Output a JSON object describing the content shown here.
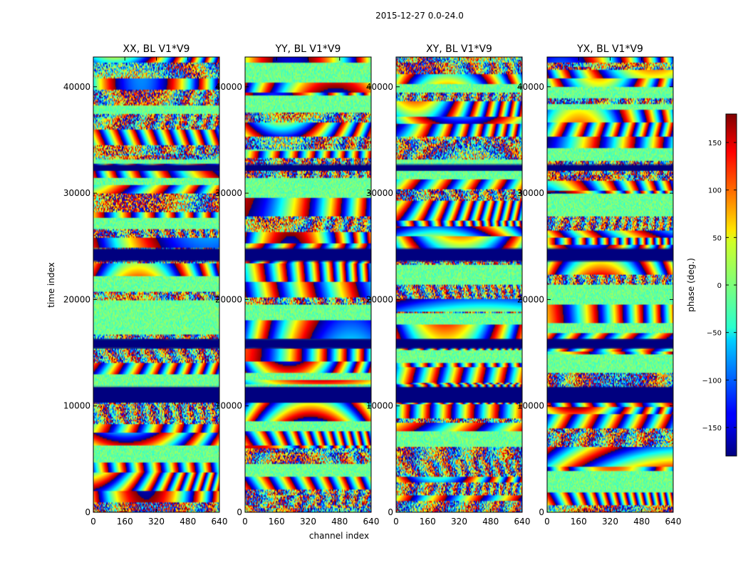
{
  "chart_data": {
    "type": "heatmap",
    "suptitle": "2015-12-27 0.0-24.0",
    "xlabel": "channel index",
    "ylabel": "time index",
    "xlim": [
      0,
      640
    ],
    "ylim": [
      0,
      42800
    ],
    "xticks": [
      0,
      160,
      320,
      480,
      640
    ],
    "yticks": [
      0,
      10000,
      20000,
      30000,
      40000
    ],
    "xtick_labels": [
      "0",
      "160",
      "320",
      "480",
      "640"
    ],
    "ytick_labels": [
      "0",
      "10000",
      "20000",
      "30000",
      "40000"
    ],
    "panels": [
      {
        "title": "XX, BL V1*V9",
        "seed": 11
      },
      {
        "title": "YY, BL V1*V9",
        "seed": 23
      },
      {
        "title": "XY, BL V1*V9",
        "seed": 37
      },
      {
        "title": "YX, BL V1*V9",
        "seed": 53
      }
    ],
    "flagged_time_ranges": [
      [
        32100,
        32700
      ],
      [
        23600,
        24800
      ],
      [
        15400,
        16300
      ],
      [
        10300,
        11800
      ]
    ],
    "colorbar": {
      "label": "phase (deg.)",
      "range": [
        -180,
        180
      ],
      "ticks": [
        150,
        100,
        50,
        0,
        -50,
        -100,
        -150
      ],
      "tick_labels": [
        "150",
        "100",
        "50",
        "0",
        "−50",
        "−100",
        "−150"
      ],
      "colormap": "jet"
    },
    "colors": {
      "masked": "#00007f",
      "axes": "#000000"
    }
  }
}
